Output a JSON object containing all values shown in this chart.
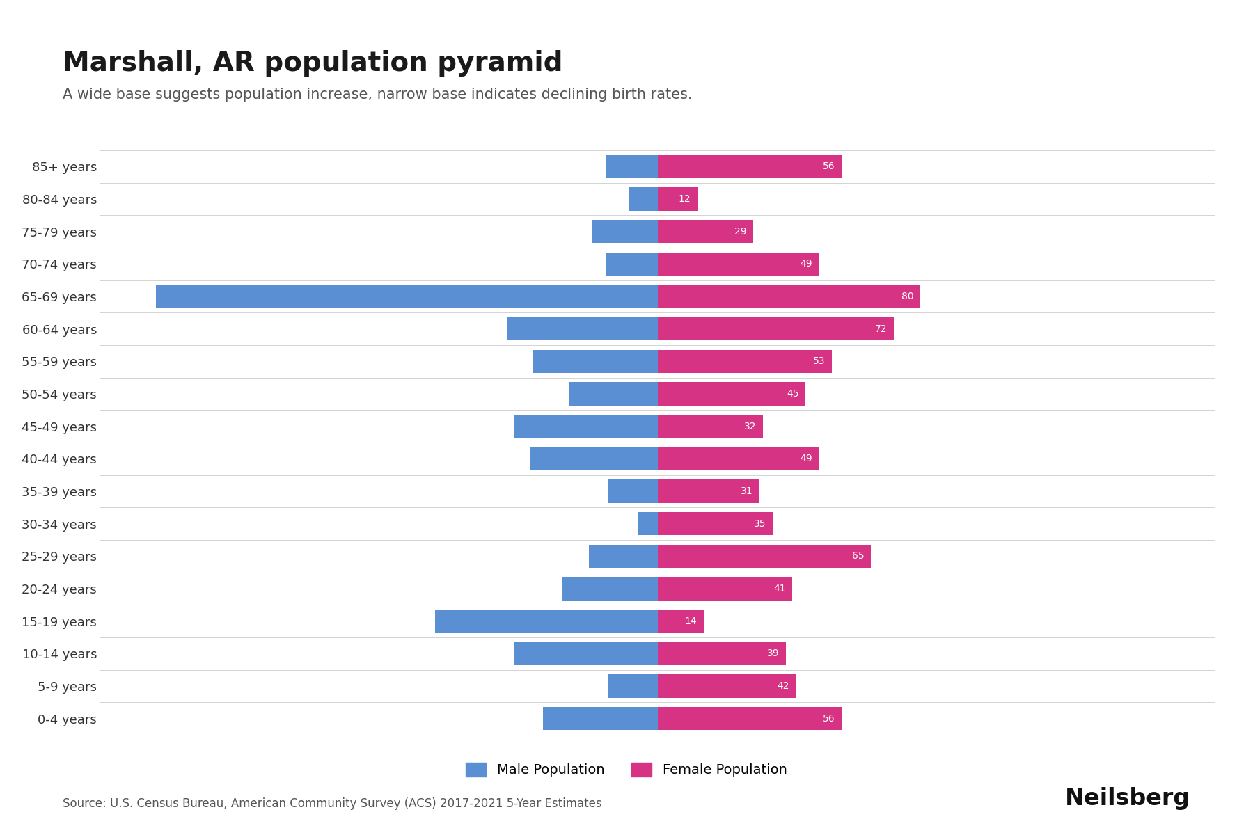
{
  "title": "Marshall, AR population pyramid",
  "subtitle": "A wide base suggests population increase, narrow base indicates declining birth rates.",
  "source": "Source: U.S. Census Bureau, American Community Survey (ACS) 2017-2021 5-Year Estimates",
  "age_groups": [
    "0-4 years",
    "5-9 years",
    "10-14 years",
    "15-19 years",
    "20-24 years",
    "25-29 years",
    "30-34 years",
    "35-39 years",
    "40-44 years",
    "45-49 years",
    "50-54 years",
    "55-59 years",
    "60-64 years",
    "65-69 years",
    "70-74 years",
    "75-79 years",
    "80-84 years",
    "85+ years"
  ],
  "male": [
    35,
    15,
    44,
    68,
    29,
    21,
    6,
    15,
    39,
    44,
    27,
    38,
    46,
    153,
    16,
    20,
    9,
    16
  ],
  "female": [
    56,
    42,
    39,
    14,
    41,
    65,
    35,
    31,
    49,
    32,
    45,
    53,
    72,
    80,
    49,
    29,
    12,
    56
  ],
  "male_color": "#5b8fd4",
  "female_color": "#d63384",
  "background_color": "#ffffff",
  "bar_height": 0.72,
  "title_fontsize": 28,
  "subtitle_fontsize": 15,
  "tick_fontsize": 13,
  "source_fontsize": 12,
  "neilsberg_fontsize": 24,
  "legend_fontsize": 14
}
